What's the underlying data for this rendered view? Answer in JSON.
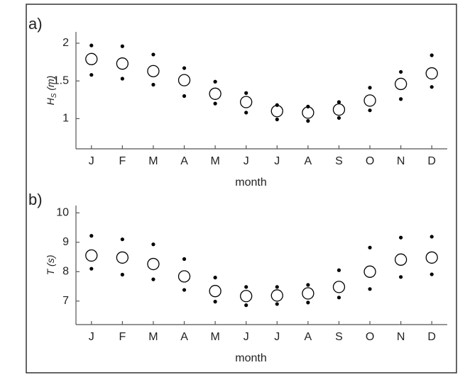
{
  "chart_data": [
    {
      "type": "scatter",
      "panel_label": "a)",
      "ylabel": [
        "H",
        "S",
        " (m)"
      ],
      "xlabel": "month",
      "categories": [
        "J",
        "F",
        "M",
        "A",
        "M",
        "J",
        "J",
        "A",
        "S",
        "O",
        "N",
        "D"
      ],
      "ylim": [
        0.6,
        2.15
      ],
      "yticks": [
        1,
        1.5,
        2
      ],
      "series": [
        {
          "marker": "circle",
          "color": "#000000",
          "values": [
            1.79,
            1.73,
            1.63,
            1.51,
            1.33,
            1.22,
            1.1,
            1.08,
            1.12,
            1.24,
            1.46,
            1.6
          ]
        },
        {
          "marker": "dot",
          "color": "#000000",
          "values": [
            1.97,
            1.96,
            1.85,
            1.67,
            1.49,
            1.34,
            1.18,
            1.16,
            1.22,
            1.41,
            1.62,
            1.84
          ]
        },
        {
          "marker": "dot",
          "color": "#000000",
          "values": [
            1.58,
            1.53,
            1.45,
            1.3,
            1.2,
            1.08,
            0.99,
            0.97,
            1.01,
            1.11,
            1.26,
            1.42
          ]
        }
      ]
    },
    {
      "type": "scatter",
      "panel_label": "b)",
      "ylabel": [
        "T",
        "",
        " (s)"
      ],
      "xlabel": "month",
      "categories": [
        "J",
        "F",
        "M",
        "A",
        "M",
        "J",
        "J",
        "A",
        "S",
        "O",
        "N",
        "D"
      ],
      "ylim": [
        6.2,
        10.25
      ],
      "yticks": [
        7,
        8,
        9,
        10
      ],
      "series": [
        {
          "marker": "circle",
          "color": "#000000",
          "values": [
            8.55,
            8.48,
            8.26,
            7.84,
            7.34,
            7.17,
            7.19,
            7.26,
            7.48,
            8.0,
            8.41,
            8.48
          ]
        },
        {
          "marker": "dot",
          "color": "#000000",
          "values": [
            9.22,
            9.1,
            8.93,
            8.43,
            7.8,
            7.48,
            7.48,
            7.55,
            8.05,
            8.82,
            9.16,
            9.19
          ]
        },
        {
          "marker": "dot",
          "color": "#000000",
          "values": [
            8.1,
            7.9,
            7.74,
            7.38,
            6.98,
            6.86,
            6.9,
            6.95,
            7.12,
            7.41,
            7.82,
            7.91
          ]
        }
      ]
    }
  ]
}
